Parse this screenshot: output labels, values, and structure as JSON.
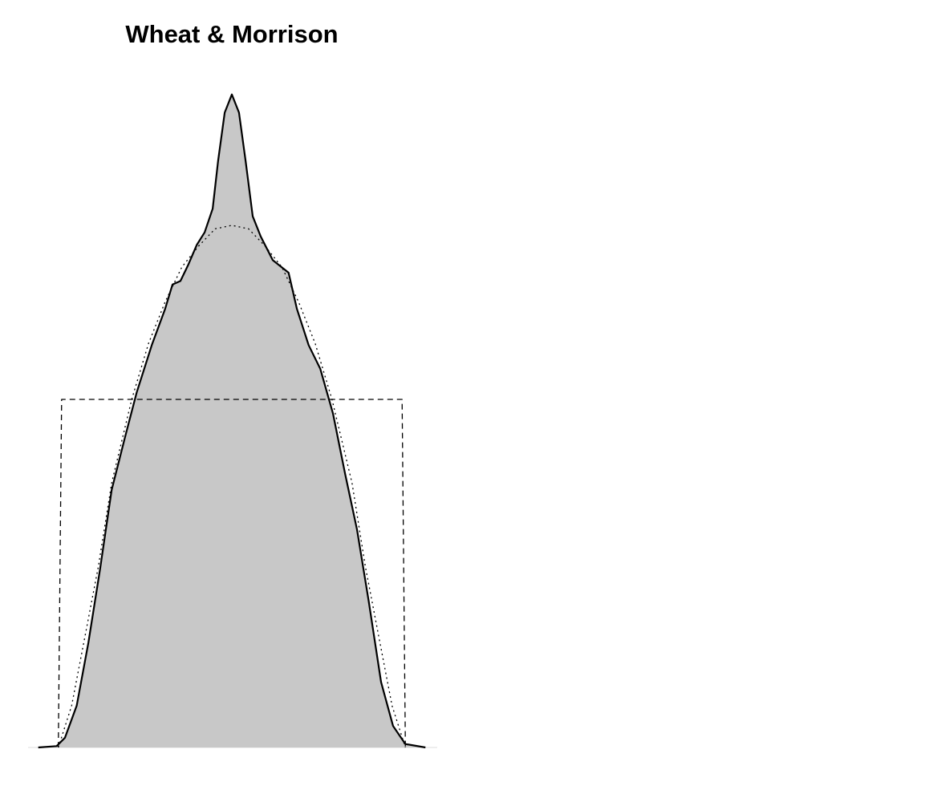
{
  "chart_data": {
    "type": "density",
    "title": "Wheat & Morrison",
    "xlim": [
      -1.2,
      1.2
    ],
    "ylim": [
      0,
      1
    ],
    "series": [
      {
        "color": "#000000",
        "fill": "#c8c8c8",
        "linestyle": "solid",
        "x": [
          -1.16,
          -1.05,
          -1.0,
          -0.93,
          -0.86,
          -0.79,
          -0.72,
          -0.64,
          -0.57,
          -0.48,
          -0.4,
          -0.356,
          -0.308,
          -0.26,
          -0.21,
          -0.163,
          -0.115,
          -0.082,
          -0.043,
          0,
          0.043,
          0.082,
          0.125,
          0.173,
          0.245,
          0.293,
          0.34,
          0.39,
          0.46,
          0.53,
          0.606,
          0.678,
          0.75,
          0.82,
          0.894,
          0.966,
          1.04,
          1.16
        ],
        "values": [
          0,
          0.002,
          0.014,
          0.06,
          0.15,
          0.256,
          0.37,
          0.446,
          0.51,
          0.578,
          0.63,
          0.665,
          0.67,
          0.694,
          0.722,
          0.74,
          0.774,
          0.843,
          0.912,
          0.938,
          0.912,
          0.843,
          0.763,
          0.734,
          0.7,
          0.691,
          0.682,
          0.63,
          0.578,
          0.544,
          0.48,
          0.394,
          0.313,
          0.21,
          0.094,
          0.031,
          0.005,
          0
        ]
      },
      {
        "color": "#000000",
        "linestyle": "dotted",
        "x": [
          -1.04,
          -0.96,
          -0.88,
          -0.8,
          -0.72,
          -0.6,
          -0.5,
          -0.4,
          -0.3,
          -0.2,
          -0.1,
          0,
          0.1,
          0.2,
          0.3,
          0.4,
          0.5,
          0.6,
          0.72,
          0.8,
          0.88,
          0.96,
          1.04
        ],
        "values": [
          0,
          0.06,
          0.16,
          0.26,
          0.38,
          0.5,
          0.58,
          0.64,
          0.69,
          0.72,
          0.745,
          0.75,
          0.745,
          0.72,
          0.69,
          0.64,
          0.58,
          0.5,
          0.38,
          0.26,
          0.16,
          0.06,
          0
        ]
      },
      {
        "color": "#000000",
        "linestyle": "dashed",
        "x": [
          -1.04,
          -1.02,
          1.02,
          1.04
        ],
        "values": [
          0,
          0.5,
          0.5,
          0
        ]
      }
    ]
  }
}
